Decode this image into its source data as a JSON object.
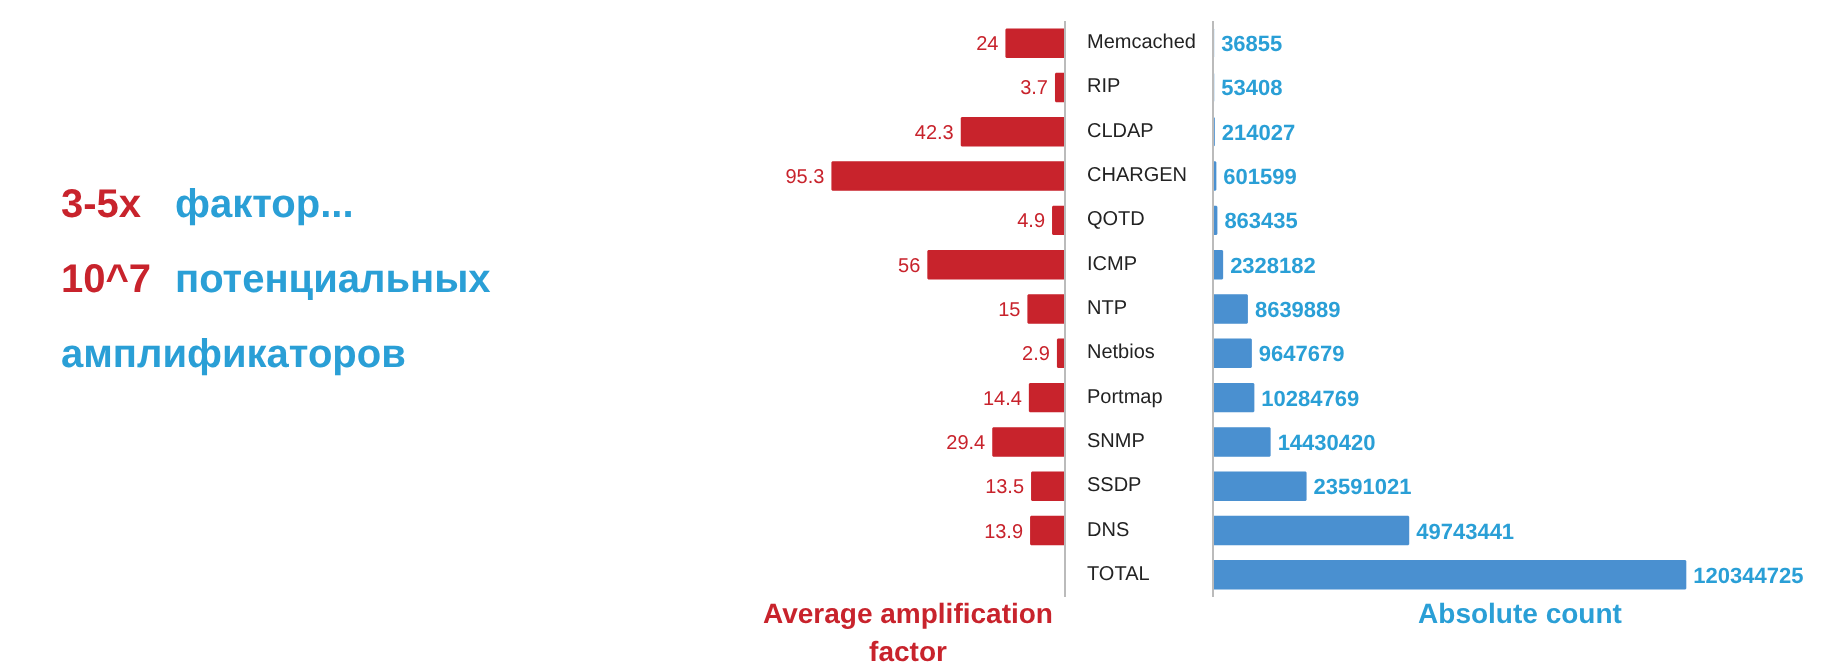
{
  "chart_data": [
    {
      "type": "other",
      "annotations": [
        "3-5x фактор...",
        "10^7 потенциальных",
        "амплификаторов"
      ]
    },
    {
      "type": "bar",
      "orientation": "horizontal",
      "xlabel": "Average amplification factor",
      "categories": [
        "Memcached",
        "RIP",
        "CLDAP",
        "CHARGEN",
        "QOTD",
        "ICMP",
        "NTP",
        "Netbios",
        "Portmap",
        "SNMP",
        "SSDP",
        "DNS",
        "TOTAL"
      ],
      "values": [
        24,
        3.7,
        42.3,
        95.3,
        4.9,
        56,
        15,
        2.9,
        14.4,
        29.4,
        13.5,
        13.9,
        null
      ],
      "color": "#c8232c",
      "data_labels": true,
      "tick_labels": "y"
    },
    {
      "type": "bar",
      "orientation": "horizontal",
      "xlabel": "Absolute count",
      "categories": [
        "Memcached",
        "RIP",
        "CLDAP",
        "CHARGEN",
        "QOTD",
        "ICMP",
        "NTP",
        "Netbios",
        "Portmap",
        "SNMP",
        "SSDP",
        "DNS",
        "TOTAL"
      ],
      "values": [
        36855,
        53408,
        214027,
        601599,
        863435,
        2328182,
        8639889,
        9647679,
        10284769,
        14430420,
        23591021,
        49743441,
        120344725
      ],
      "color": "#4a90d0",
      "data_labels": true,
      "tick_labels": false
    }
  ]
}
